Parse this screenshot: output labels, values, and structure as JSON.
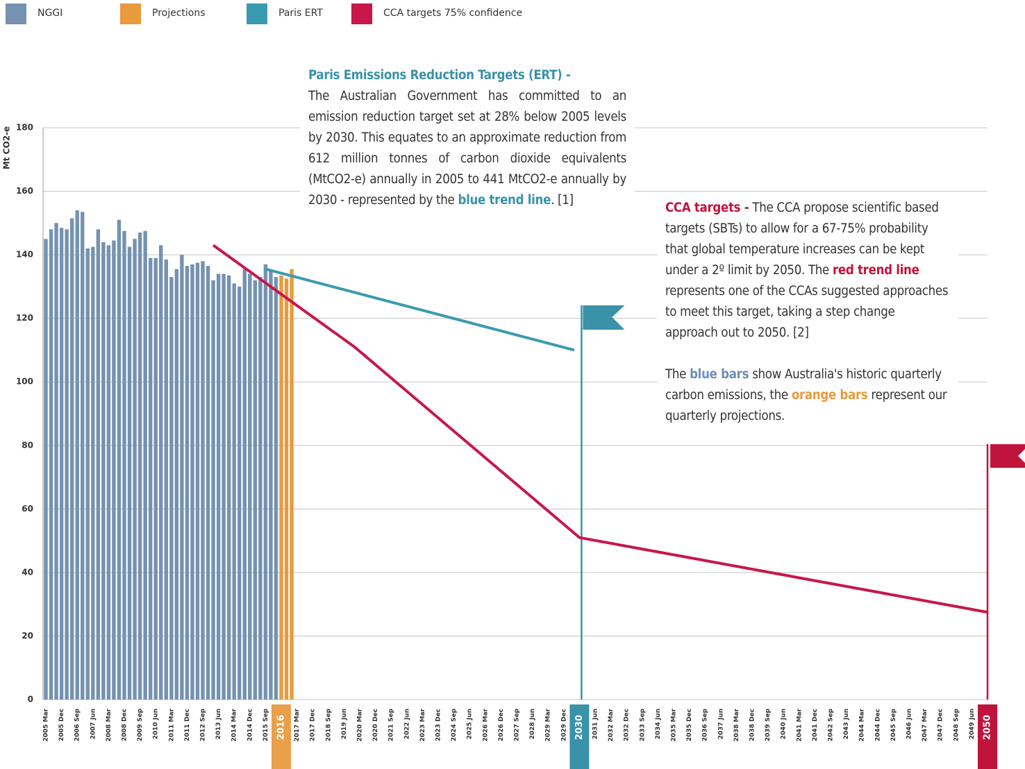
{
  "chart_data": {
    "type": "bar",
    "y_label": "Mt CO2-e",
    "ylim": [
      0,
      180
    ],
    "yticks": [
      0,
      20,
      40,
      60,
      80,
      100,
      120,
      140,
      160,
      180
    ],
    "grid": true,
    "highlight_colors": [
      "#e8a04a",
      "#3a92a8",
      "#c0143c"
    ],
    "categories": [
      "2005 Mar",
      null,
      null,
      "2005 Dec",
      null,
      null,
      "2006 Sep",
      null,
      null,
      "2007 Jun",
      null,
      null,
      "2008 Mar",
      null,
      null,
      "2008 Dec",
      null,
      null,
      "2009 Sep",
      null,
      null,
      "2010 Jun",
      null,
      null,
      "2011 Mar",
      null,
      null,
      "2011 Dec",
      null,
      null,
      "2012 Sep",
      null,
      null,
      "2013 Jun",
      null,
      null,
      "2014 Mar",
      null,
      null,
      "2014 Dec",
      null,
      null,
      "2015 Sep",
      null,
      null,
      "2016",
      null,
      null,
      "2017 Mar",
      null,
      null,
      "2017 Dec",
      null,
      null,
      "2018 Sep",
      null,
      null,
      "2019 Jun",
      null,
      null,
      "2020 Mar",
      null,
      null,
      "2020 Dec",
      null,
      null,
      "2021 Sep",
      null,
      null,
      "2022 Jun",
      null,
      null,
      "2023 Mar",
      null,
      null,
      "2023 Dec",
      null,
      null,
      "2024 Sep",
      null,
      null,
      "2025 Jun",
      null,
      null,
      "2026 Mar",
      null,
      null,
      "2026 Dec",
      null,
      null,
      "2027 Sep",
      null,
      null,
      "2028 Jun",
      null,
      null,
      "2029 Mar",
      null,
      null,
      "2029 Dec",
      null,
      null,
      "2030",
      null,
      null,
      "2031 Jun",
      null,
      null,
      "2032 Mar",
      null,
      null,
      "2032 Dec",
      null,
      null,
      "2033 Sep",
      null,
      null,
      "2034 Jun",
      null,
      null,
      "2035 Mar",
      null,
      null,
      "2035 Dec",
      null,
      null,
      "2036 Sep",
      null,
      null,
      "2037 Jun",
      null,
      null,
      "2038 Mar",
      null,
      null,
      "2038 Dec",
      null,
      null,
      "2039 Sep",
      null,
      null,
      "2040 Jun",
      null,
      null,
      "2041 Mar",
      null,
      null,
      "2041 Dec",
      null,
      null,
      "2042 Sep",
      null,
      null,
      "2043 Jun",
      null,
      null,
      "2044 Mar",
      null,
      null,
      "2044 Dec",
      null,
      null,
      "2045 Sep",
      null,
      null,
      "2046 Jun",
      null,
      null,
      "2047 Mar",
      null,
      null,
      "2047 Dec",
      null,
      null,
      "2048 Sep",
      null,
      null,
      "2049 Jun",
      null,
      null,
      "2050"
    ],
    "series": [
      {
        "name": "NGGI",
        "type": "bar",
        "color": "#7592b0",
        "values": [
          145,
          148,
          150,
          148.5,
          148,
          151.5,
          154,
          153.5,
          142,
          142.5,
          148,
          144,
          143,
          144.5,
          151,
          147.5,
          142.5,
          145,
          147,
          147.5,
          139,
          139,
          143,
          138.5,
          133,
          135.5,
          140,
          136.5,
          137,
          137.5,
          138,
          136.5,
          132,
          134,
          134,
          133.5,
          131,
          130,
          135.5,
          134,
          132,
          133,
          137,
          135,
          133,
          null,
          null,
          null,
          null,
          null,
          null,
          null,
          null,
          null,
          null,
          null,
          null,
          null,
          null,
          null,
          null,
          null,
          null,
          null,
          null,
          null,
          null,
          null,
          null,
          null,
          null,
          null,
          null,
          null,
          null,
          null,
          null,
          null,
          null,
          null,
          null,
          null,
          null,
          null,
          null,
          null,
          null,
          null,
          null,
          null,
          null,
          null,
          null,
          null,
          null,
          null,
          null,
          null,
          null,
          null,
          null,
          null,
          null,
          null,
          null,
          null,
          null,
          null,
          null,
          null,
          null,
          null,
          null,
          null,
          null,
          null,
          null,
          null,
          null,
          null,
          null,
          null,
          null,
          null,
          null,
          null,
          null,
          null,
          null,
          null,
          null,
          null,
          null,
          null,
          null,
          null,
          null,
          null,
          null,
          null,
          null,
          null,
          null,
          null,
          null,
          null,
          null,
          null,
          null,
          null,
          null,
          null,
          null,
          null,
          null,
          null,
          null,
          null,
          null,
          null,
          null,
          null,
          null,
          null,
          null,
          null,
          null,
          null,
          null,
          null,
          null,
          null,
          null,
          null,
          null,
          null,
          null,
          null,
          null,
          null,
          null
        ]
      },
      {
        "name": "Projections",
        "type": "bar",
        "color": "#e89a3c",
        "values": [
          null,
          null,
          null,
          null,
          null,
          null,
          null,
          null,
          null,
          null,
          null,
          null,
          null,
          null,
          null,
          null,
          null,
          null,
          null,
          null,
          null,
          null,
          null,
          null,
          null,
          null,
          null,
          null,
          null,
          null,
          null,
          null,
          null,
          null,
          null,
          null,
          null,
          null,
          null,
          null,
          null,
          null,
          null,
          null,
          null,
          133.5,
          132.5,
          135.5,
          null,
          null,
          null,
          null,
          null,
          null,
          null,
          null,
          null,
          null,
          null,
          null,
          null,
          null,
          null,
          null,
          null,
          null,
          null,
          null,
          null,
          null,
          null,
          null,
          null,
          null,
          null,
          null,
          null,
          null,
          null,
          null,
          null,
          null,
          null,
          null,
          null,
          null,
          null,
          null,
          null,
          null,
          null,
          null,
          null,
          null,
          null,
          null,
          null,
          null,
          null,
          null,
          null,
          null,
          null,
          null,
          null,
          null,
          null,
          null,
          null,
          null,
          null,
          null,
          null,
          null,
          null,
          null,
          null,
          null,
          null,
          null,
          null,
          null,
          null,
          null,
          null,
          null,
          null,
          null,
          null,
          null,
          null,
          null,
          null,
          null,
          null,
          null,
          null,
          null,
          null,
          null,
          null,
          null,
          null,
          null,
          null,
          null,
          null,
          null,
          null,
          null,
          null,
          null,
          null,
          null,
          null,
          null,
          null,
          null,
          null,
          null,
          null,
          null,
          null,
          null,
          null,
          null,
          null,
          null,
          null,
          null,
          null,
          null,
          null,
          null,
          null,
          null,
          null,
          null,
          null,
          null,
          null
        ]
      },
      {
        "name": "Paris ERT",
        "type": "line",
        "color": "#3a9bb0",
        "x": [
          "2015 Sep",
          "2030 Jun"
        ],
        "values": [
          135.5,
          110
        ]
      },
      {
        "name": "CCA targets 75% confidence",
        "type": "line",
        "color": "#c8174a",
        "x": [
          "2013 Mar",
          "2019 Dec",
          "2030 Sep",
          "2050 Mar"
        ],
        "values": [
          143,
          111,
          51,
          27.5
        ]
      }
    ],
    "annotations": [
      {
        "paragraphs": [
          [
            {
              "text": "Paris Emissions Reduction Targets (ERT) -",
              "color": "#3a92a8",
              "bold": true,
              "block": true
            },
            {
              "text": "The Australian Government has committed to an emission reduction target set at 28% below 2005 levels by 2030. This equates to an approximate reduction from 612 million tonnes of carbon dioxide equivalents (MtCO2-e) annually in 2005 to 441 MtCO2-e annually by 2030 - represented by the"
            },
            {
              "text": "blue trend line",
              "color": "#3a92a8",
              "bold": true
            },
            {
              "text": ". [1]"
            }
          ]
        ]
      },
      {
        "paragraphs": [
          [
            {
              "text": "CCA targets -",
              "color": "#c0143c",
              "bold": true
            },
            {
              "text": "The CCA propose scientific based targets (SBTs) to allow for a 67-75% probability that global temperature increases can be kept under a 2º limit by 2050. The"
            },
            {
              "text": "red trend line",
              "color": "#c0143c",
              "bold": true
            },
            {
              "text": "represents one of the CCAs suggested approaches to meet this target, taking a step change approach out to 2050. [2]"
            }
          ],
          [
            {
              "text": "The"
            },
            {
              "text": "blue bars",
              "color": "#6e8fb5",
              "bold": true
            },
            {
              "text": "show Australia's historic quarterly carbon emissions, the"
            },
            {
              "text": "orange bars",
              "color": "#e89a3c",
              "bold": true
            },
            {
              "text": "represent our quarterly projections."
            }
          ]
        ]
      }
    ]
  }
}
